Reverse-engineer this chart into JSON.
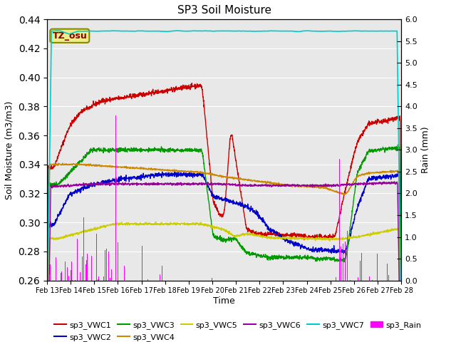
{
  "title": "SP3 Soil Moisture",
  "xlabel": "Time",
  "ylabel_left": "Soil Moisture (m3/m3)",
  "ylabel_right": "Rain (mm)",
  "ylim_left": [
    0.26,
    0.44
  ],
  "ylim_right": [
    0.0,
    6.0
  ],
  "xlim": [
    0,
    16
  ],
  "xtick_labels": [
    "Feb 13",
    "Feb 14",
    "Feb 15",
    "Feb 16",
    "Feb 17",
    "Feb 18",
    "Feb 19",
    "Feb 20",
    "Feb 21",
    "Feb 22",
    "Feb 23",
    "Feb 24",
    "Feb 25",
    "Feb 26",
    "Feb 27",
    "Feb 28"
  ],
  "colors": {
    "sp3_VWC1": "#cc0000",
    "sp3_VWC2": "#0000cc",
    "sp3_VWC3": "#009900",
    "sp3_VWC4": "#cc8800",
    "sp3_VWC5": "#cccc00",
    "sp3_VWC6": "#990099",
    "sp3_VWC7": "#00cccc",
    "sp3_Rain": "#ff00ff"
  },
  "tz_osu_box_facecolor": "#eeee88",
  "tz_osu_box_edgecolor": "#888800",
  "tz_osu_text_color": "#880000",
  "background_color": "#e8e8e8",
  "yticks_left": [
    0.26,
    0.28,
    0.3,
    0.32,
    0.34,
    0.36,
    0.38,
    0.4,
    0.42,
    0.44
  ],
  "yticks_right": [
    0.0,
    0.5,
    1.0,
    1.5,
    2.0,
    2.5,
    3.0,
    3.5,
    4.0,
    4.5,
    5.0,
    5.5,
    6.0
  ]
}
